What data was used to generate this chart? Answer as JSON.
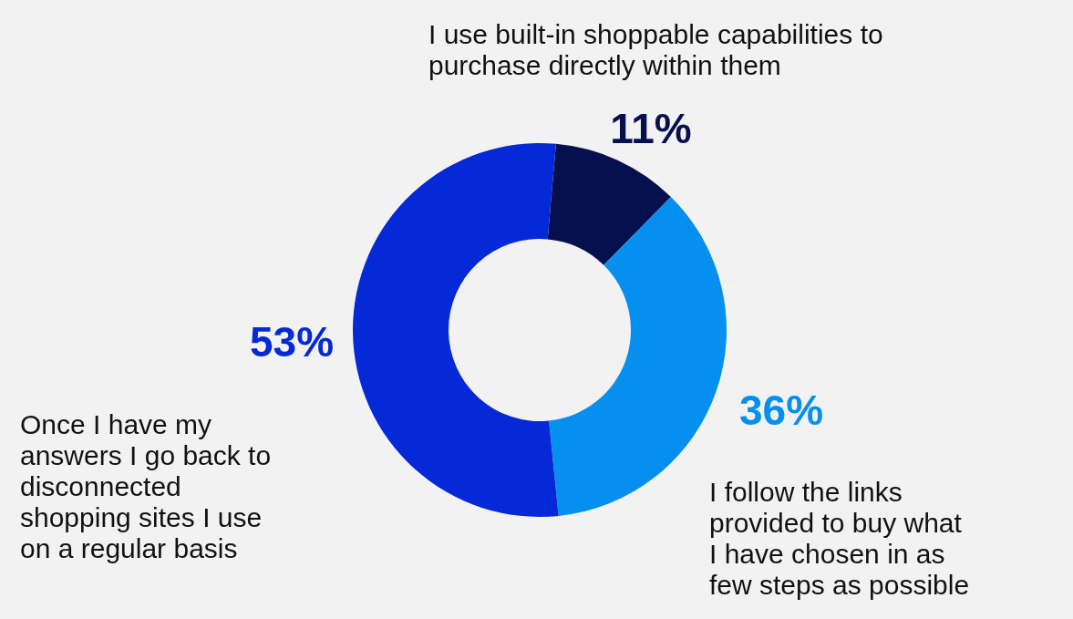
{
  "chart_data": {
    "type": "donut",
    "categories": [
      "I use built-in shoppable capabilities to purchase directly within them",
      "I follow the links provided to buy what I have chosen in as few steps as possible",
      "Once I have my answers I go back to disconnected shopping sites I use on a regular basis"
    ],
    "values": [
      11,
      36,
      53
    ],
    "colors": [
      "#06104f",
      "#0590f0",
      "#0529d6"
    ],
    "value_labels": [
      "11%",
      "36%",
      "53%"
    ]
  }
}
